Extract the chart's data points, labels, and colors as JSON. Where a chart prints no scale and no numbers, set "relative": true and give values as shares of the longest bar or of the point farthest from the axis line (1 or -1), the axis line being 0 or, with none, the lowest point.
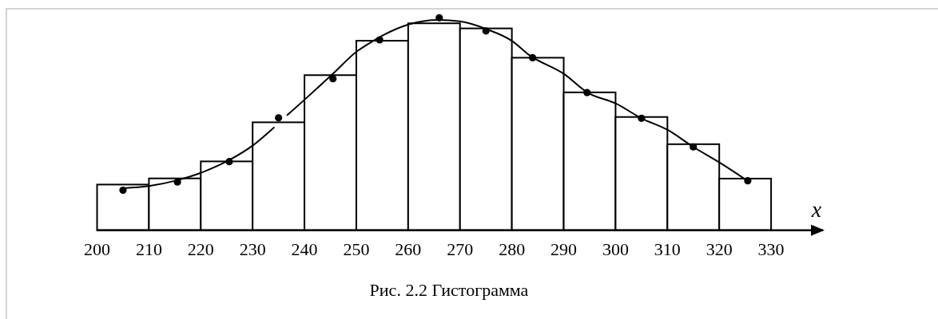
{
  "chart_data": {
    "type": "histogram",
    "relative": true,
    "xlim": [
      200,
      340
    ],
    "xticks": [
      200,
      210,
      220,
      230,
      240,
      250,
      260,
      270,
      280,
      290,
      300,
      310,
      320,
      330
    ],
    "xlabel": "x",
    "annotations": [
      "Рис. 2.2 Гистограмма"
    ],
    "series": [
      {
        "color": "#ffffff",
        "bins": [
          200,
          210,
          220,
          230,
          240,
          250,
          260,
          270,
          280,
          290,
          300,
          310,
          320,
          330
        ],
        "values": [
          0.215,
          0.244,
          0.324,
          0.508,
          0.73,
          0.892,
          0.974,
          0.95,
          0.812,
          0.649,
          0.533,
          0.405,
          0.243
        ]
      },
      {
        "type": "line",
        "color": "#000000",
        "x": [
          205.1,
          210,
          215.4,
          220,
          225.7,
          230.2,
          234.1,
          235.4,
          236.7,
          240,
          245.6,
          250,
          252.3,
          255.4,
          260,
          265.9,
          270,
          275.2,
          280.1,
          283.2,
          290.2,
          294.6,
          300.1,
          305,
          310,
          315,
          319.9,
          325.3
        ],
        "values": [
          0.198,
          0.208,
          0.235,
          0.27,
          0.333,
          0.402,
          0.483,
          null,
          0.542,
          0.614,
          0.739,
          0.84,
          0.877,
          0.921,
          0.968,
          0.99,
          0.983,
          0.946,
          0.89,
          0.827,
          0.733,
          0.648,
          0.596,
          0.527,
          0.473,
          0.392,
          0.321,
          0.235
        ]
      },
      {
        "type": "scatter",
        "color": "#000000",
        "marker": "circle",
        "x": [
          205,
          215.5,
          225.5,
          235,
          245.5,
          254.5,
          266,
          275,
          284,
          294.5,
          305,
          315,
          325.5
        ],
        "values": [
          0.188,
          0.227,
          0.323,
          0.529,
          0.713,
          0.896,
          1,
          0.938,
          0.812,
          0.648,
          0.527,
          0.392,
          0.233
        ]
      }
    ]
  }
}
